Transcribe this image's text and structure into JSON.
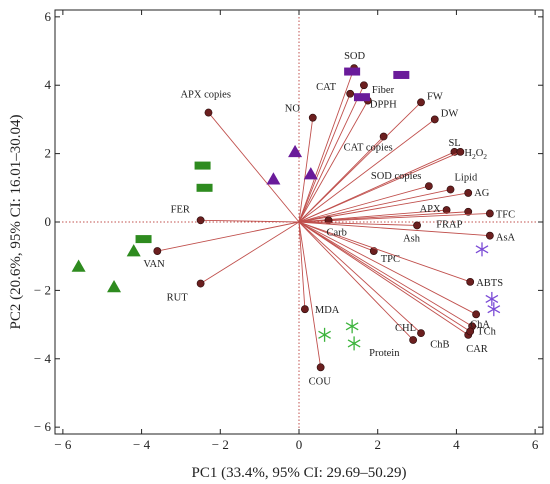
{
  "chart_data": {
    "type": "scatter",
    "subtype": "pca-biplot",
    "xlabel": "PC1 (33.4%, 95% CI: 29.69–50.29)",
    "ylabel": "PC2 (20.6%, 95% CI: 16.01–30.04)",
    "xlim": [
      -6.2,
      6.2
    ],
    "ylim": [
      -6.2,
      6.2
    ],
    "xticks": [
      -6,
      -4,
      -2,
      0,
      2,
      4,
      6
    ],
    "yticks": [
      -6,
      -4,
      -2,
      0,
      2,
      4,
      6
    ],
    "reference_lines": "dotted lines at x=0 and y=0",
    "colors": {
      "vector": "#c0504d",
      "point_fill": "#6b1f1f",
      "green": "#2e8b1f",
      "purple": "#6a1b9a",
      "asterisk_green": "#3cb43c",
      "asterisk_purple": "#7b4bd6"
    },
    "variables": [
      {
        "label": "SOD",
        "x": 1.4,
        "y": 4.5
      },
      {
        "label": "CAT",
        "x": 1.3,
        "y": 3.75
      },
      {
        "label": "Fiber",
        "x": 1.65,
        "y": 4.0
      },
      {
        "label": "DPPH",
        "x": 1.75,
        "y": 3.55
      },
      {
        "label": "FW",
        "x": 3.1,
        "y": 3.5
      },
      {
        "label": "DW",
        "x": 3.45,
        "y": 3.0
      },
      {
        "label": "NO",
        "x": 0.35,
        "y": 3.05
      },
      {
        "label": "CAT copies",
        "x": 2.15,
        "y": 2.5
      },
      {
        "label": "APX copies",
        "x": -2.3,
        "y": 3.2
      },
      {
        "label": "SL",
        "x": 3.95,
        "y": 2.05
      },
      {
        "label": "H2O2",
        "x": 4.1,
        "y": 2.05
      },
      {
        "label": "SOD copies",
        "x": 3.3,
        "y": 1.05
      },
      {
        "label": "Lipid",
        "x": 3.85,
        "y": 0.95
      },
      {
        "label": "AG",
        "x": 4.3,
        "y": 0.85
      },
      {
        "label": "APX",
        "x": 3.75,
        "y": 0.35
      },
      {
        "label": "FRAP",
        "x": 4.3,
        "y": 0.3
      },
      {
        "label": "TFC",
        "x": 4.85,
        "y": 0.25
      },
      {
        "label": "Carb",
        "x": 0.75,
        "y": 0.05
      },
      {
        "label": "Ash",
        "x": 3.0,
        "y": -0.1
      },
      {
        "label": "AsA",
        "x": 4.85,
        "y": -0.4
      },
      {
        "label": "TPC",
        "x": 1.9,
        "y": -0.85
      },
      {
        "label": "FER",
        "x": -2.5,
        "y": 0.05
      },
      {
        "label": "VAN",
        "x": -3.6,
        "y": -0.85
      },
      {
        "label": "RUT",
        "x": -2.5,
        "y": -1.8
      },
      {
        "label": "ABTS",
        "x": 4.35,
        "y": -1.75
      },
      {
        "label": "MDA",
        "x": 0.15,
        "y": -2.55
      },
      {
        "label": "ChA",
        "x": 4.5,
        "y": -2.7
      },
      {
        "label": "TCh",
        "x": 4.4,
        "y": -3.05
      },
      {
        "label": "CAR",
        "x": 4.3,
        "y": -3.3
      },
      {
        "label": "ChB",
        "x": 4.35,
        "y": -3.2
      },
      {
        "label": "CHL",
        "x": 3.1,
        "y": -3.25
      },
      {
        "label": "Protein",
        "x": 2.9,
        "y": -3.45
      },
      {
        "label": "COU",
        "x": 0.55,
        "y": -4.25
      }
    ],
    "label_offsets": {
      "SOD": [
        -10,
        -9
      ],
      "CAT": [
        -34,
        -4
      ],
      "Fiber": [
        8,
        8
      ],
      "DPPH": [
        2,
        7
      ],
      "FW": [
        6,
        -3
      ],
      "DW": [
        6,
        -3
      ],
      "NO": [
        -28,
        -6
      ],
      "CAT copies": [
        -40,
        14
      ],
      "APX copies": [
        -28,
        -15
      ],
      "SL": [
        -6,
        -6
      ],
      "H2O2": [
        4,
        4
      ],
      "SOD copies": [
        -58,
        -7
      ],
      "Lipid": [
        4,
        -9
      ],
      "AG": [
        6,
        3
      ],
      "APX": [
        -27,
        2
      ],
      "FRAP": [
        -32,
        16
      ],
      "TFC": [
        6,
        4
      ],
      "Carb": [
        -2,
        15
      ],
      "Ash": [
        -14,
        16
      ],
      "AsA": [
        6,
        5
      ],
      "TPC": [
        7,
        11
      ],
      "FER": [
        -30,
        -8
      ],
      "VAN": [
        -14,
        16
      ],
      "RUT": [
        -34,
        17
      ],
      "ABTS": [
        6,
        4
      ],
      "MDA": [
        10,
        4
      ],
      "ChA": [
        -6,
        13
      ],
      "TCh": [
        5,
        8
      ],
      "CAR": [
        -2,
        17
      ],
      "ChB": [
        -40,
        16
      ],
      "CHL": [
        -26,
        -2
      ],
      "Protein": [
        -44,
        16
      ],
      "COU": [
        -12,
        17
      ]
    },
    "observations": [
      {
        "shape": "triangle",
        "color": "green",
        "x": -5.6,
        "y": -1.3
      },
      {
        "shape": "triangle",
        "color": "green",
        "x": -4.7,
        "y": -1.9
      },
      {
        "shape": "triangle",
        "color": "green",
        "x": -4.2,
        "y": -0.85
      },
      {
        "shape": "rectangle",
        "color": "green",
        "x": -3.95,
        "y": -0.5
      },
      {
        "shape": "rectangle",
        "color": "green",
        "x": -2.45,
        "y": 1.65
      },
      {
        "shape": "rectangle",
        "color": "green",
        "x": -2.4,
        "y": 1.0
      },
      {
        "shape": "triangle",
        "color": "purple",
        "x": -0.1,
        "y": 2.05
      },
      {
        "shape": "triangle",
        "color": "purple",
        "x": -0.65,
        "y": 1.25
      },
      {
        "shape": "triangle",
        "color": "purple",
        "x": 0.3,
        "y": 1.4
      },
      {
        "shape": "rectangle",
        "color": "purple",
        "x": 1.35,
        "y": 4.4
      },
      {
        "shape": "rectangle",
        "color": "purple",
        "x": 1.6,
        "y": 3.65
      },
      {
        "shape": "rectangle",
        "color": "purple",
        "x": 2.6,
        "y": 4.3
      },
      {
        "shape": "asterisk",
        "color": "asterisk_green",
        "x": 0.65,
        "y": -3.3
      },
      {
        "shape": "asterisk",
        "color": "asterisk_green",
        "x": 1.35,
        "y": -3.05
      },
      {
        "shape": "asterisk",
        "color": "asterisk_green",
        "x": 1.4,
        "y": -3.55
      },
      {
        "shape": "asterisk",
        "color": "asterisk_purple",
        "x": 4.65,
        "y": -0.8
      },
      {
        "shape": "asterisk",
        "color": "asterisk_purple",
        "x": 4.9,
        "y": -2.25
      },
      {
        "shape": "asterisk",
        "color": "asterisk_purple",
        "x": 4.95,
        "y": -2.55
      }
    ]
  }
}
